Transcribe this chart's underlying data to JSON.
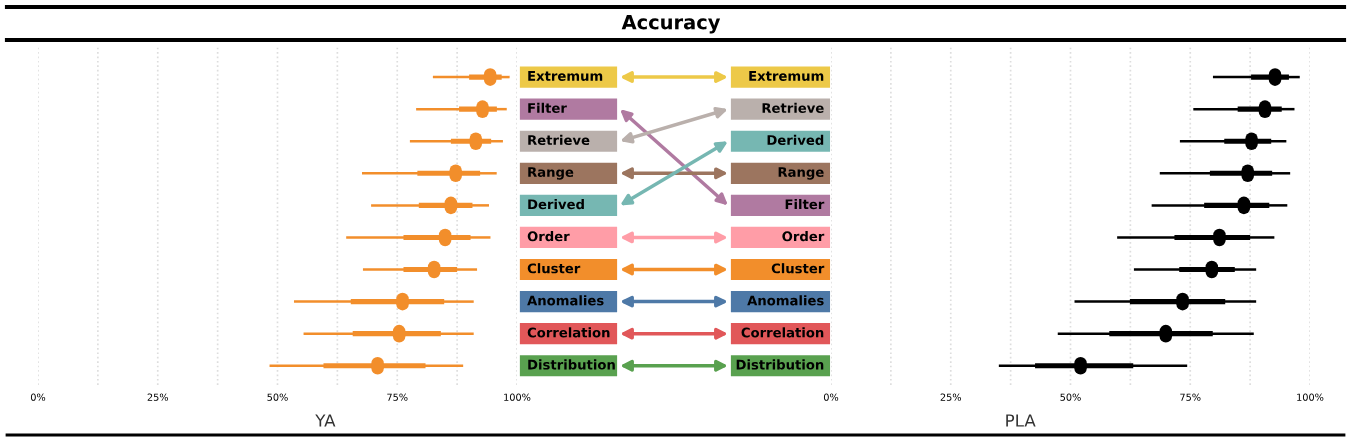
{
  "chart_data": [
    {
      "type": "box",
      "title": "Accuracy",
      "xlabel": "YA",
      "orientation": "horizontal",
      "grid": "x",
      "legend": false,
      "categories": [
        "Extremum",
        "Filter",
        "Retrieve",
        "Range",
        "Derived",
        "Order",
        "Cluster",
        "Anomalies",
        "Correlation",
        "Distribution"
      ],
      "colors": [
        "#edc948",
        "#b07aa1",
        "#bab0ac",
        "#9c755f",
        "#76b7b2",
        "#ff9da7",
        "#f28e2b",
        "#4e79a7",
        "#e15759",
        "#59a14f"
      ],
      "xlim": [
        0,
        100
      ],
      "xticks": [
        {
          "value": 0,
          "label": "0%"
        },
        {
          "value": 12.5,
          "label": null
        },
        {
          "value": 25,
          "label": "25%"
        },
        {
          "value": 37.5,
          "label": null
        },
        {
          "value": 50,
          "label": "50%"
        },
        {
          "value": 62.5,
          "label": null
        },
        {
          "value": 75,
          "label": "75%"
        },
        {
          "value": 87.5,
          "label": null
        },
        {
          "value": 100,
          "label": "100%"
        }
      ],
      "series": [
        {
          "color": "#f28e2b",
          "boxes": [
            {
              "low": 82.7,
              "q1": 90.0,
              "median": 94.4,
              "q3": 96.8,
              "high": 98.2
            },
            {
              "low": 79.2,
              "q1": 87.9,
              "median": 92.8,
              "q3": 95.8,
              "high": 97.6
            },
            {
              "low": 77.9,
              "q1": 86.2,
              "median": 91.4,
              "q3": 94.6,
              "high": 96.8
            },
            {
              "low": 67.9,
              "q1": 79.2,
              "median": 87.2,
              "q3": 92.3,
              "high": 95.5
            },
            {
              "low": 69.8,
              "q1": 79.5,
              "median": 86.2,
              "q3": 90.7,
              "high": 93.9
            },
            {
              "low": 64.6,
              "q1": 76.3,
              "median": 85.0,
              "q3": 90.3,
              "high": 94.2
            },
            {
              "low": 68.1,
              "q1": 76.3,
              "median": 82.7,
              "q3": 87.5,
              "high": 91.4
            },
            {
              "low": 53.7,
              "q1": 65.3,
              "median": 76.1,
              "q3": 84.8,
              "high": 90.7
            },
            {
              "low": 55.7,
              "q1": 65.7,
              "median": 75.4,
              "q3": 84.1,
              "high": 90.7
            },
            {
              "low": 48.6,
              "q1": 59.6,
              "median": 70.9,
              "q3": 80.9,
              "high": 88.5
            }
          ]
        }
      ]
    },
    {
      "type": "box",
      "xlabel": "PLA",
      "orientation": "horizontal",
      "grid": "x",
      "legend": false,
      "categories": [
        "Extremum",
        "Retrieve",
        "Derived",
        "Range",
        "Filter",
        "Order",
        "Cluster",
        "Anomalies",
        "Correlation",
        "Distribution"
      ],
      "colors": [
        "#edc948",
        "#bab0ac",
        "#76b7b2",
        "#9c755f",
        "#b07aa1",
        "#ff9da7",
        "#f28e2b",
        "#4e79a7",
        "#e15759",
        "#59a14f"
      ],
      "xlim": [
        0,
        100
      ],
      "xticks": [
        {
          "value": 0,
          "label": "0%"
        },
        {
          "value": 12.5,
          "label": null
        },
        {
          "value": 25,
          "label": "25%"
        },
        {
          "value": 37.5,
          "label": null
        },
        {
          "value": 50,
          "label": "50%"
        },
        {
          "value": 62.5,
          "label": null
        },
        {
          "value": 75,
          "label": "75%"
        },
        {
          "value": 87.5,
          "label": null
        },
        {
          "value": 100,
          "label": "100%"
        }
      ],
      "series": [
        {
          "color": "#000000",
          "boxes": [
            {
              "low": 80.0,
              "q1": 87.7,
              "median": 92.7,
              "q3": 95.6,
              "high": 97.6
            },
            {
              "low": 75.9,
              "q1": 84.9,
              "median": 90.6,
              "q3": 94.1,
              "high": 96.5
            },
            {
              "low": 73.1,
              "q1": 82.1,
              "median": 87.8,
              "q3": 91.9,
              "high": 94.8
            },
            {
              "low": 68.9,
              "q1": 79.1,
              "median": 87.0,
              "q3": 92.1,
              "high": 95.6
            },
            {
              "low": 67.2,
              "q1": 77.9,
              "median": 86.2,
              "q3": 91.5,
              "high": 95.0
            },
            {
              "low": 60.0,
              "q1": 71.7,
              "median": 81.1,
              "q3": 87.5,
              "high": 92.3
            },
            {
              "low": 63.5,
              "q1": 72.7,
              "median": 79.5,
              "q3": 84.3,
              "high": 88.5
            },
            {
              "low": 51.1,
              "q1": 62.4,
              "median": 73.4,
              "q3": 82.3,
              "high": 88.5
            },
            {
              "low": 47.6,
              "q1": 58.1,
              "median": 69.9,
              "q3": 79.7,
              "high": 88.0
            },
            {
              "low": 35.3,
              "q1": 42.6,
              "median": 52.1,
              "q3": 63.1,
              "high": 74.1
            }
          ]
        }
      ]
    }
  ]
}
